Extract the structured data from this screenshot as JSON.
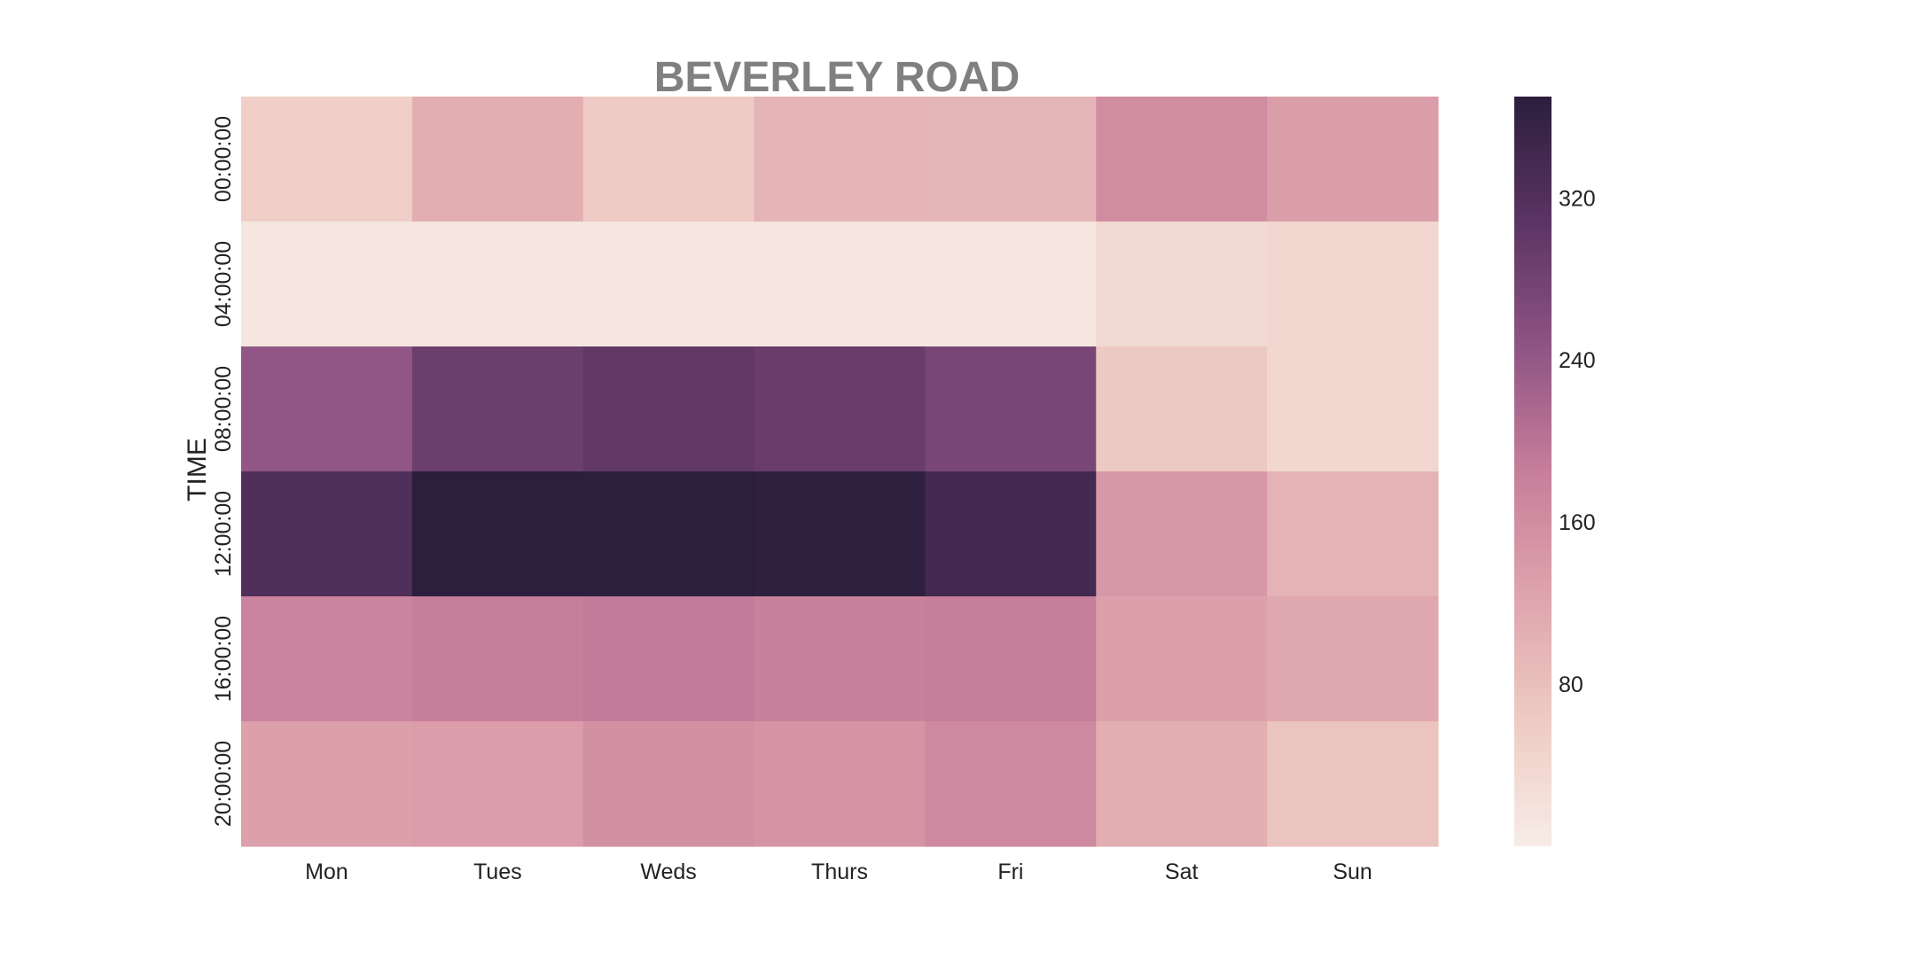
{
  "chart_data": {
    "type": "heatmap",
    "title": "BEVERLEY ROAD",
    "xlabel": "",
    "ylabel": "TIME",
    "x_categories": [
      "Mon",
      "Tues",
      "Weds",
      "Thurs",
      "Fri",
      "Sat",
      "Sun"
    ],
    "y_categories": [
      "00:00:00",
      "04:00:00",
      "08:00:00",
      "12:00:00",
      "16:00:00",
      "20:00:00"
    ],
    "values": [
      [
        55,
        108,
        62,
        98,
        95,
        160,
        133
      ],
      [
        12,
        12,
        12,
        12,
        12,
        35,
        40
      ],
      [
        243,
        290,
        300,
        292,
        272,
        65,
        40
      ],
      [
        322,
        370,
        375,
        365,
        340,
        145,
        100
      ],
      [
        175,
        185,
        190,
        180,
        185,
        130,
        118
      ],
      [
        130,
        135,
        155,
        150,
        165,
        108,
        75
      ]
    ],
    "colorbar": {
      "vmin": 0,
      "vmax": 370,
      "ticks": [
        80,
        160,
        240,
        320
      ]
    },
    "colormap": [
      "#f7ece6",
      "#eecbc4",
      "#dea4ac",
      "#c77e9a",
      "#8e5484",
      "#5b3463",
      "#2c1e3d"
    ],
    "grid": false
  }
}
